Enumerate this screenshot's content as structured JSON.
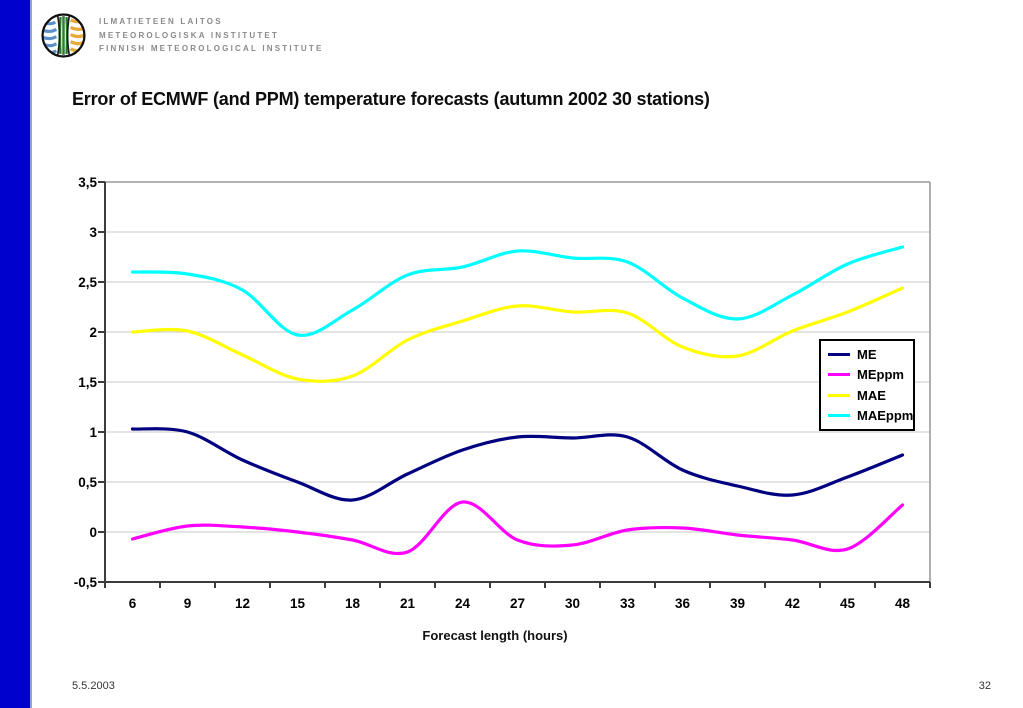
{
  "logo": {
    "lines": [
      "ILMATIETEEN LAITOS",
      "METEOROLOGISKA INSTITUTET",
      "FINNISH METEOROLOGICAL INSTITUTE"
    ]
  },
  "title": "Error of ECMWF (and PPM) temperature forecasts (autumn 2002 30 stations)",
  "footer": {
    "date": "5.5.2003",
    "page_number": "32"
  },
  "accent": {
    "sidebar_color": "#0101cd"
  },
  "chart_data": {
    "type": "line",
    "x": [
      6,
      9,
      12,
      15,
      18,
      21,
      24,
      27,
      30,
      33,
      36,
      39,
      42,
      45,
      48
    ],
    "x_tick_labels": [
      "6",
      "9",
      "12",
      "15",
      "18",
      "21",
      "24",
      "27",
      "30",
      "33",
      "36",
      "39",
      "42",
      "45",
      "48"
    ],
    "xlabel": "Forecast length (hours)",
    "y_tick_labels": [
      "3,5",
      "3",
      "2,5",
      "2",
      "1,5",
      "1",
      "0,5",
      "0",
      "-0,5"
    ],
    "y_tick_values": [
      3.5,
      3,
      2.5,
      2,
      1.5,
      1,
      0.5,
      0,
      -0.5
    ],
    "ylim": [
      -0.5,
      3.5
    ],
    "grid": true,
    "legend_position": "right-middle",
    "series": [
      {
        "name": "ME",
        "color": "#000080",
        "values": [
          1.03,
          1.0,
          0.72,
          0.5,
          0.32,
          0.58,
          0.82,
          0.95,
          0.94,
          0.95,
          0.62,
          0.46,
          0.37,
          0.55,
          0.77
        ]
      },
      {
        "name": "MEppm",
        "color": "#ff00ff",
        "values": [
          -0.07,
          0.06,
          0.05,
          0.0,
          -0.08,
          -0.2,
          0.3,
          -0.08,
          -0.13,
          0.02,
          0.04,
          -0.03,
          -0.08,
          -0.17,
          0.27
        ]
      },
      {
        "name": "MAE",
        "color": "#ffff00",
        "values": [
          2.0,
          2.01,
          1.77,
          1.53,
          1.56,
          1.92,
          2.11,
          2.26,
          2.2,
          2.19,
          1.85,
          1.76,
          2.01,
          2.2,
          2.44
        ]
      },
      {
        "name": "MAEppm",
        "color": "#00ffff",
        "values": [
          2.6,
          2.58,
          2.42,
          1.97,
          2.22,
          2.57,
          2.65,
          2.81,
          2.74,
          2.7,
          2.34,
          2.13,
          2.37,
          2.68,
          2.85
        ]
      }
    ]
  }
}
